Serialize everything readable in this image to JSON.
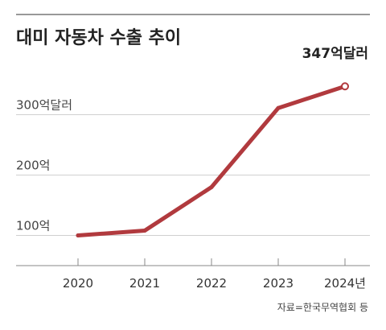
{
  "chart_data": {
    "type": "line",
    "title": "대미 자동차 수출 추이",
    "x": [
      "2020",
      "2021",
      "2022",
      "2023",
      "2024년"
    ],
    "values": [
      100,
      108,
      180,
      311,
      347
    ],
    "y_ticks": [
      {
        "value": 100,
        "label": "100억"
      },
      {
        "value": 200,
        "label": "200억"
      },
      {
        "value": 300,
        "label": "300억달러"
      }
    ],
    "ylim": [
      50,
      370
    ],
    "unit": "억달러",
    "grid": true,
    "annotation": "347억달러",
    "source": "자료=한국무역협회 등",
    "colors": {
      "line": "#b13a3e",
      "grid": "#d0d0d0",
      "baseline": "#888888",
      "text": "#222222"
    }
  }
}
